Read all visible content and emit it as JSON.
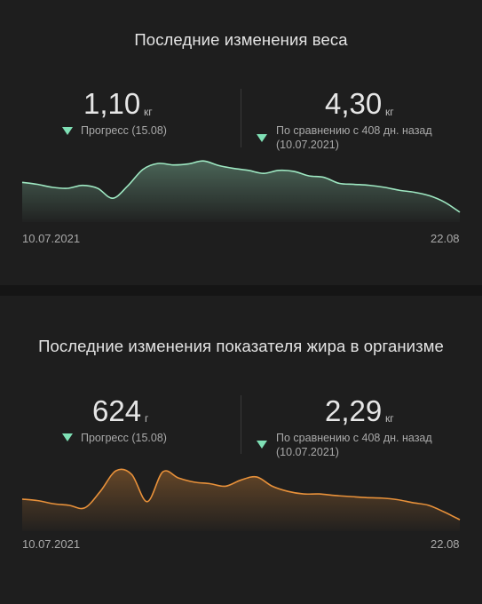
{
  "weight": {
    "title": "Последние изменения веса",
    "progress_value": "1,10",
    "progress_unit": "кг",
    "progress_label": "Прогресс (15.08)",
    "compare_value": "4,30",
    "compare_unit": "кг",
    "compare_label_1": "По сравнению с 408 дн. назад",
    "compare_label_2": "(10.07.2021)",
    "x_start": "10.07.2021",
    "x_end": "22.08",
    "color": "#9ee8c2"
  },
  "fat": {
    "title": "Последние изменения показателя жира в организме",
    "progress_value": "624",
    "progress_unit": "г",
    "progress_label": "Прогресс (15.08)",
    "compare_value": "2,29",
    "compare_unit": "кг",
    "compare_label_1": "По сравнению с 408 дн. назад",
    "compare_label_2": "(10.07.2021)",
    "x_start": "10.07.2021",
    "x_end": "22.08",
    "color": "#e8913a"
  },
  "chart_data": [
    {
      "type": "area",
      "name": "weight",
      "x_range": [
        "10.07.2021",
        "22.08"
      ],
      "values": [
        0.62,
        0.58,
        0.52,
        0.5,
        0.56,
        0.5,
        0.3,
        0.55,
        0.88,
        1.0,
        0.97,
        0.99,
        1.05,
        0.96,
        0.9,
        0.86,
        0.8,
        0.86,
        0.84,
        0.75,
        0.72,
        0.6,
        0.58,
        0.56,
        0.52,
        0.46,
        0.42,
        0.35,
        0.22,
        0.02
      ]
    },
    {
      "type": "area",
      "name": "fat",
      "x_range": [
        "10.07.2021",
        "22.08"
      ],
      "values": [
        0.45,
        0.42,
        0.36,
        0.33,
        0.28,
        0.6,
        1.0,
        0.93,
        0.4,
        0.98,
        0.86,
        0.78,
        0.75,
        0.7,
        0.82,
        0.88,
        0.7,
        0.6,
        0.55,
        0.55,
        0.52,
        0.5,
        0.48,
        0.47,
        0.44,
        0.38,
        0.33,
        0.2,
        0.05
      ]
    }
  ]
}
